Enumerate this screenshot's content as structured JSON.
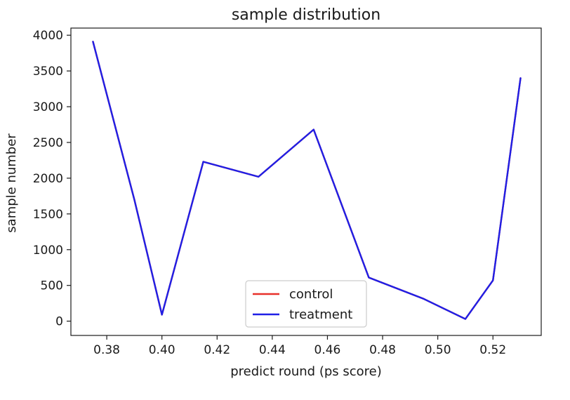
{
  "chart_data": {
    "type": "line",
    "title": "sample distribution",
    "xlabel": "predict round (ps score)",
    "ylabel": "sample number",
    "xlim": [
      0.367,
      0.5375
    ],
    "ylim": [
      -200,
      4100
    ],
    "xticks": [
      0.38,
      0.4,
      0.42,
      0.44,
      0.46,
      0.48,
      0.5,
      0.52
    ],
    "xtick_labels": [
      "0.38",
      "0.40",
      "0.42",
      "0.44",
      "0.46",
      "0.48",
      "0.50",
      "0.52"
    ],
    "yticks": [
      0,
      500,
      1000,
      1500,
      2000,
      2500,
      3000,
      3500,
      4000
    ],
    "ytick_labels": [
      "0",
      "500",
      "1000",
      "1500",
      "2000",
      "2500",
      "3000",
      "3500",
      "4000"
    ],
    "grid": false,
    "legend_position": "lower-center",
    "x": [
      0.375,
      0.39,
      0.4,
      0.415,
      0.435,
      0.455,
      0.475,
      0.495,
      0.51,
      0.52,
      0.53
    ],
    "series": [
      {
        "name": "control",
        "color": "#e8302a",
        "values": [
          3910,
          1700,
          90,
          2230,
          2020,
          2680,
          610,
          310,
          30,
          570,
          3400
        ]
      },
      {
        "name": "treatment",
        "color": "#1f1fe6",
        "values": [
          3910,
          1700,
          90,
          2230,
          2020,
          2680,
          610,
          310,
          30,
          570,
          3400
        ]
      }
    ]
  }
}
